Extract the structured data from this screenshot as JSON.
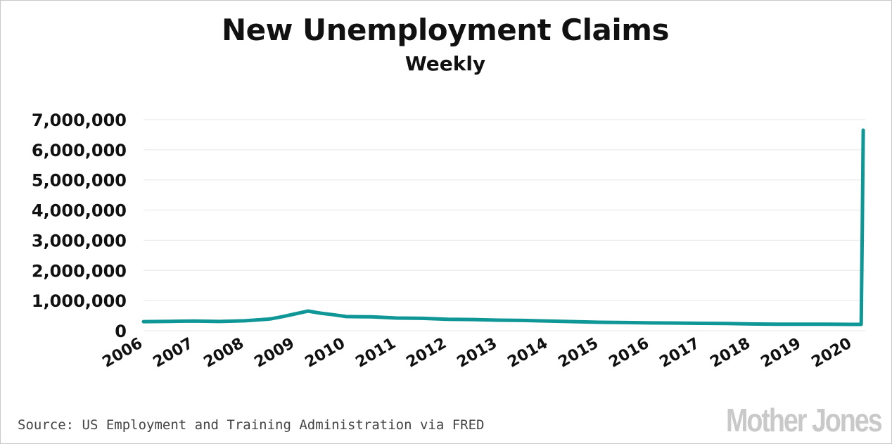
{
  "chart_data": {
    "type": "line",
    "title": "New Unemployment Claims",
    "subtitle": "Weekly",
    "xlabel": "",
    "ylabel": "",
    "xlim": [
      2006,
      2020.25
    ],
    "ylim": [
      0,
      7000000
    ],
    "y_ticks": [
      0,
      1000000,
      2000000,
      3000000,
      4000000,
      5000000,
      6000000,
      7000000
    ],
    "y_tick_labels": [
      "0",
      "1,000,000",
      "2,000,000",
      "3,000,000",
      "4,000,000",
      "5,000,000",
      "6,000,000",
      "7,000,000"
    ],
    "x_ticks": [
      2006,
      2007,
      2008,
      2009,
      2010,
      2011,
      2012,
      2013,
      2014,
      2015,
      2016,
      2017,
      2018,
      2019,
      2020
    ],
    "x_tick_labels": [
      "2006",
      "2007",
      "2008",
      "2009",
      "2010",
      "2011",
      "2012",
      "2013",
      "2014",
      "2015",
      "2016",
      "2017",
      "2018",
      "2019",
      "2020"
    ],
    "grid": "horizontal",
    "line_color": "#0f9696",
    "series": [
      {
        "x": [
          2006.0,
          2006.5,
          2007.0,
          2007.5,
          2008.0,
          2008.5,
          2008.75,
          2009.0,
          2009.25,
          2009.5,
          2009.75,
          2010.0,
          2010.5,
          2011.0,
          2011.5,
          2012.0,
          2012.5,
          2013.0,
          2013.5,
          2014.0,
          2014.5,
          2015.0,
          2015.5,
          2016.0,
          2016.5,
          2017.0,
          2017.5,
          2018.0,
          2018.5,
          2019.0,
          2019.5,
          2020.0,
          2020.17,
          2020.19,
          2020.21
        ],
        "y": [
          300000,
          310000,
          320000,
          305000,
          330000,
          390000,
          470000,
          560000,
          650000,
          580000,
          530000,
          470000,
          460000,
          420000,
          410000,
          380000,
          370000,
          350000,
          340000,
          320000,
          300000,
          280000,
          270000,
          260000,
          255000,
          245000,
          240000,
          225000,
          215000,
          215000,
          215000,
          210000,
          211000,
          3300000,
          6650000
        ]
      }
    ]
  },
  "source": "Source: US Employment and Training Administration via FRED",
  "logo": "MotherJones"
}
